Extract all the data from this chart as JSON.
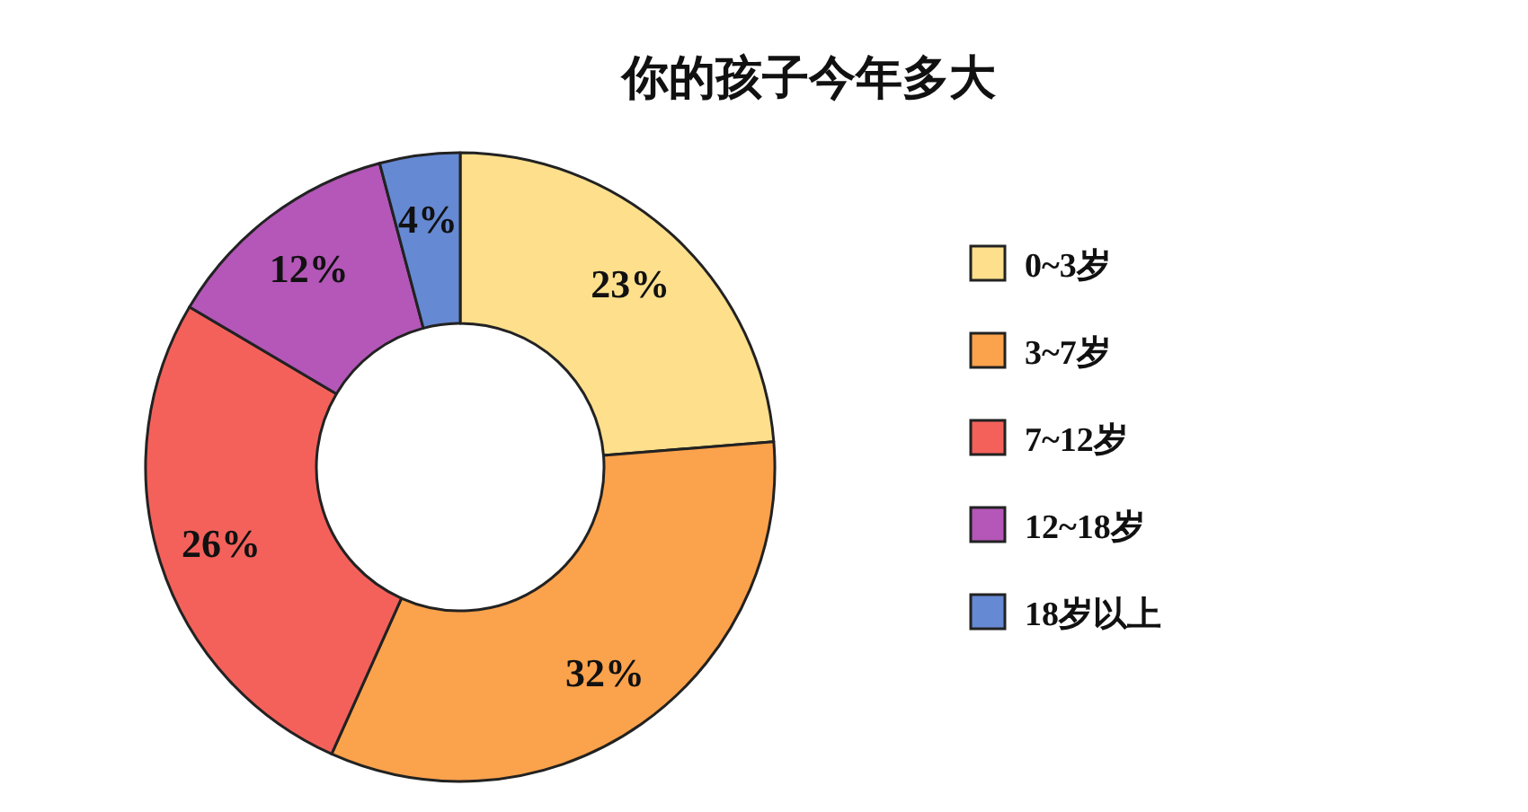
{
  "chart_data": {
    "type": "donut",
    "title": "你的孩子今年多大",
    "categories": [
      "0~3岁",
      "3~7岁",
      "7~12岁",
      "12~18岁",
      "18岁以上"
    ],
    "values": [
      23,
      32,
      26,
      12,
      4
    ],
    "colors": [
      "#fddf8c",
      "#fba24c",
      "#f4615b",
      "#b457b8",
      "#6689d3"
    ],
    "value_labels": [
      "23%",
      "32%",
      "26%",
      "12%",
      "4%"
    ],
    "legend": "right"
  }
}
